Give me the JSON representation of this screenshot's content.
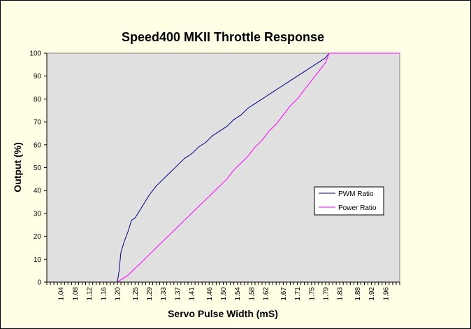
{
  "chart_data": {
    "type": "line",
    "title": "Speed400 MKII Throttle Response",
    "xlabel": "Servo Pulse Width (mS)",
    "ylabel": "Output (%)",
    "ylim": [
      0,
      100
    ],
    "yticks": [
      "0",
      "10",
      "20",
      "30",
      "40",
      "50",
      "60",
      "70",
      "80",
      "90",
      "100"
    ],
    "xlim": [
      1.0,
      2.0
    ],
    "xticks": [
      "1.04",
      "1.08",
      "1.12",
      "1.16",
      "1.20",
      "1.25",
      "1.29",
      "1.33",
      "1.37",
      "1.41",
      "1.46",
      "1.50",
      "1.54",
      "1.58",
      "1.62",
      "1.67",
      "1.71",
      "1.75",
      "1.79",
      "1.83",
      "1.88",
      "1.92",
      "1.96"
    ],
    "grid": false,
    "legend_position": "right",
    "plot_background": "#e0e0e0",
    "chart_background": "#ffffe6",
    "series": [
      {
        "name": "PWM Ratio",
        "color": "#000080",
        "x": [
          1.0,
          1.2,
          1.205,
          1.21,
          1.22,
          1.23,
          1.24,
          1.25,
          1.27,
          1.29,
          1.31,
          1.33,
          1.35,
          1.37,
          1.39,
          1.41,
          1.43,
          1.45,
          1.47,
          1.49,
          1.51,
          1.53,
          1.55,
          1.57,
          1.59,
          1.61,
          1.63,
          1.65,
          1.67,
          1.69,
          1.71,
          1.73,
          1.75,
          1.77,
          1.79,
          1.8,
          2.0
        ],
        "y": [
          0,
          0,
          5,
          13,
          18,
          22,
          27,
          28,
          33,
          38,
          42,
          45,
          48,
          51,
          54,
          56,
          59,
          61,
          64,
          66,
          68,
          71,
          73,
          76,
          78,
          80,
          82,
          84,
          86,
          88,
          90,
          92,
          94,
          96,
          98,
          100,
          100
        ]
      },
      {
        "name": "Power Ratio",
        "color": "#ff00ff",
        "x": [
          1.0,
          1.2,
          1.21,
          1.23,
          1.25,
          1.27,
          1.29,
          1.31,
          1.33,
          1.35,
          1.37,
          1.39,
          1.41,
          1.43,
          1.45,
          1.47,
          1.49,
          1.51,
          1.53,
          1.55,
          1.57,
          1.59,
          1.61,
          1.63,
          1.65,
          1.67,
          1.69,
          1.71,
          1.73,
          1.75,
          1.77,
          1.79,
          1.8,
          2.0
        ],
        "y": [
          0,
          0,
          1,
          3,
          6,
          9,
          12,
          15,
          18,
          21,
          24,
          27,
          30,
          33,
          36,
          39,
          42,
          45,
          49,
          52,
          55,
          59,
          62,
          66,
          69,
          73,
          77,
          80,
          84,
          88,
          92,
          96,
          100,
          100
        ]
      }
    ]
  }
}
